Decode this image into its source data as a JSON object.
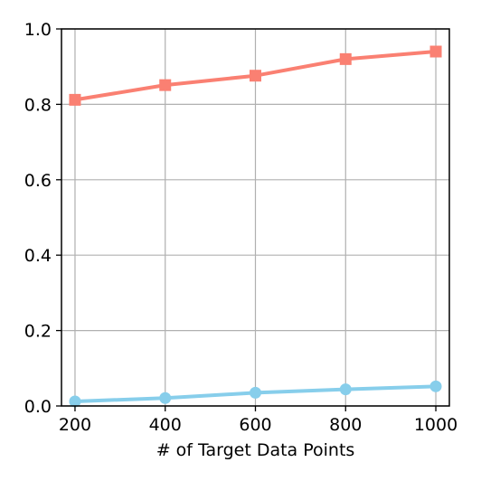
{
  "chart_data": {
    "type": "line",
    "title": "",
    "xlabel": "# of Target Data Points",
    "ylabel": "",
    "x": [
      200,
      400,
      600,
      800,
      1000
    ],
    "xlim": [
      170,
      1030
    ],
    "ylim": [
      0.0,
      1.0
    ],
    "x_ticks": [
      200,
      400,
      600,
      800,
      1000
    ],
    "x_tick_labels": [
      "200",
      "400",
      "600",
      "800",
      "1000"
    ],
    "y_ticks": [
      0.0,
      0.2,
      0.4,
      0.6,
      0.8,
      1.0
    ],
    "y_tick_labels": [
      "0.0",
      "0.2",
      "0.4",
      "0.6",
      "0.8",
      "1.0"
    ],
    "grid": true,
    "legend": "none",
    "series": [
      {
        "values": [
          0.812,
          0.851,
          0.876,
          0.92,
          0.94
        ],
        "color": "#FA8072",
        "marker": "square"
      },
      {
        "values": [
          0.012,
          0.021,
          0.035,
          0.044,
          0.052
        ],
        "color": "#87CEEB",
        "marker": "circle"
      }
    ]
  }
}
